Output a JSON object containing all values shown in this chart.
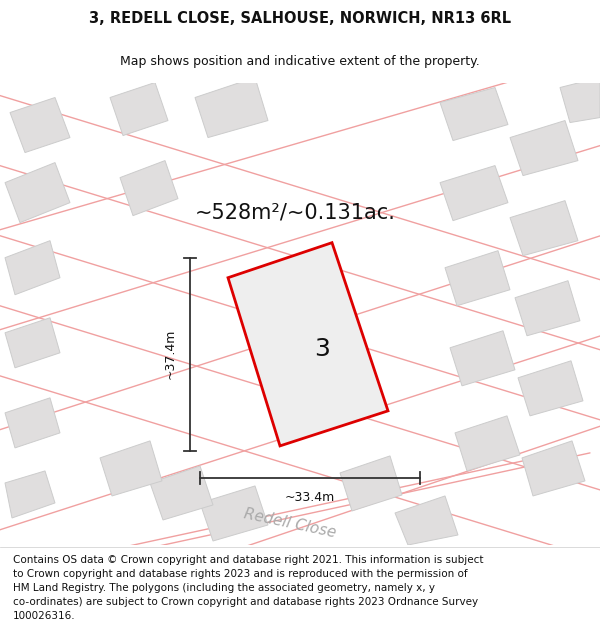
{
  "title_line1": "3, REDELL CLOSE, SALHOUSE, NORWICH, NR13 6RL",
  "title_line2": "Map shows position and indicative extent of the property.",
  "area_text": "~528m²/~0.131ac.",
  "plot_number": "3",
  "width_label": "~33.4m",
  "height_label": "~37.4m",
  "road_label": "Redell Close",
  "footer_lines": [
    "Contains OS data © Crown copyright and database right 2021. This information is subject",
    "to Crown copyright and database rights 2023 and is reproduced with the permission of",
    "HM Land Registry. The polygons (including the associated geometry, namely x, y",
    "co-ordinates) are subject to Crown copyright and database rights 2023 Ordnance Survey",
    "100026316."
  ],
  "map_bg": "#f2f0f0",
  "plot_fill": "#eeeeee",
  "plot_outline": "#dd0000",
  "building_fill": "#e0dede",
  "building_edge": "#cccccc",
  "road_color": "#f0a0a0",
  "dim_color": "#333333",
  "text_color": "#111111",
  "road_text_color": "#aaaaaa",
  "title_fontsize": 10.5,
  "subtitle_fontsize": 9,
  "area_fontsize": 15,
  "dim_fontsize": 9,
  "plot_num_fontsize": 18,
  "road_fontsize": 11,
  "footer_fontsize": 7.5
}
